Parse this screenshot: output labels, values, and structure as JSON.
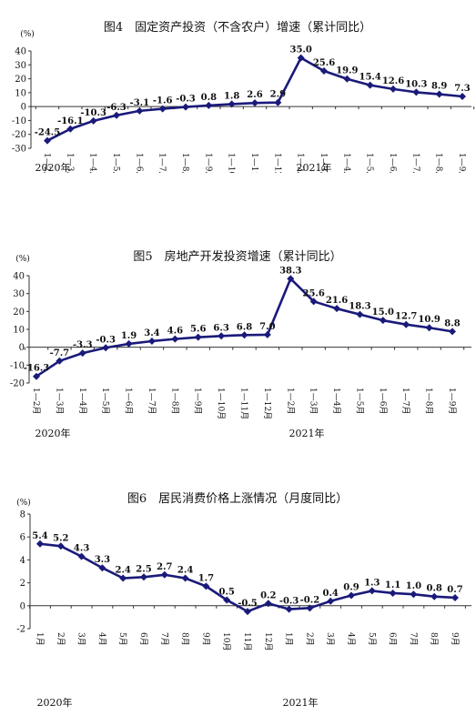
{
  "chart_data": [
    {
      "type": "line",
      "title": "图4　固定资产投资（不含农户）增速（累计同比）",
      "ylabel": "(%)",
      "ylim": [
        -30,
        40
      ],
      "yticks": [
        40,
        30,
        20,
        10,
        0,
        -10,
        -20,
        -30
      ],
      "grid": false,
      "categories": [
        "1—2月",
        "1—3月",
        "1—4月",
        "1—5月",
        "1—6月",
        "1—7月",
        "1—8月",
        "1—9月",
        "1—10月",
        "1—11月",
        "1—12月",
        "1—2月",
        "1—3月",
        "1—4月",
        "1—5月",
        "1—6月",
        "1—7月",
        "1—8月",
        "1—9月"
      ],
      "series": [
        {
          "values": [
            -24.5,
            -16.1,
            -10.3,
            -6.3,
            -3.1,
            -1.6,
            -0.3,
            0.8,
            1.8,
            2.6,
            2.9,
            35.0,
            25.6,
            19.9,
            15.4,
            12.6,
            10.3,
            8.9,
            7.3
          ],
          "labels": [
            "-24.5",
            "-16.1",
            "-10.3",
            "-6.3",
            "-3.1",
            "-1.6",
            "-0.3",
            "0.8",
            "1.8",
            "2.6",
            "2.9",
            "35.0",
            "25.6",
            "19.9",
            "15.4",
            "12.6",
            "10.3",
            "8.9",
            "7.3"
          ]
        }
      ],
      "year_labels": [
        "2020年",
        "2021年"
      ],
      "line_color": "#1a1a7a"
    },
    {
      "type": "line",
      "title": "图5　房地产开发投资增速（累计同比）",
      "ylabel": "(%)",
      "ylim": [
        -20,
        40
      ],
      "yticks": [
        40,
        30,
        20,
        10,
        0,
        -10,
        -20
      ],
      "grid": false,
      "categories": [
        "1—2月",
        "1—3月",
        "1—4月",
        "1—5月",
        "1—6月",
        "1—7月",
        "1—8月",
        "1—9月",
        "1—10月",
        "1—11月",
        "1—12月",
        "1—2月",
        "1—3月",
        "1—4月",
        "1—5月",
        "1—6月",
        "1—7月",
        "1—8月",
        "1—9月"
      ],
      "series": [
        {
          "values": [
            -16.3,
            -7.7,
            -3.3,
            -0.3,
            1.9,
            3.4,
            4.6,
            5.6,
            6.3,
            6.8,
            7.0,
            38.3,
            25.6,
            21.6,
            18.3,
            15.0,
            12.7,
            10.9,
            8.8
          ],
          "labels": [
            "-16.3",
            "-7.7",
            "-3.3",
            "-0.3",
            "1.9",
            "3.4",
            "4.6",
            "5.6",
            "6.3",
            "6.8",
            "7.0",
            "38.3",
            "25.6",
            "21.6",
            "18.3",
            "15.0",
            "12.7",
            "10.9",
            "8.8"
          ]
        }
      ],
      "year_labels": [
        "2020年",
        "2021年"
      ],
      "line_color": "#1a1a7a"
    },
    {
      "type": "line",
      "title": "图6　居民消费价格上涨情况（月度同比）",
      "ylabel": "(%)",
      "ylim": [
        -2,
        8
      ],
      "yticks": [
        8,
        6,
        4,
        2,
        0,
        -2
      ],
      "grid": false,
      "categories": [
        "1月",
        "2月",
        "3月",
        "4月",
        "5月",
        "6月",
        "7月",
        "8月",
        "9月",
        "10月",
        "11月",
        "12月",
        "1月",
        "2月",
        "3月",
        "4月",
        "5月",
        "6月",
        "7月",
        "8月",
        "9月"
      ],
      "series": [
        {
          "values": [
            5.4,
            5.2,
            4.3,
            3.3,
            2.4,
            2.5,
            2.7,
            2.4,
            1.7,
            0.5,
            -0.5,
            0.2,
            -0.3,
            -0.2,
            0.4,
            0.9,
            1.3,
            1.1,
            1.0,
            0.8,
            0.7
          ],
          "labels": [
            "5.4",
            "5.2",
            "4.3",
            "3.3",
            "2.4",
            "2.5",
            "2.7",
            "2.4",
            "1.7",
            "0.5",
            "-0.5",
            "0.2",
            "-0.3",
            "-0.2",
            "0.4",
            "0.9",
            "1.3",
            "1.1",
            "1.0",
            "0.8",
            "0.7"
          ]
        }
      ],
      "year_labels": [
        "2020年",
        "2021年"
      ],
      "line_color": "#1a1a7a"
    }
  ]
}
